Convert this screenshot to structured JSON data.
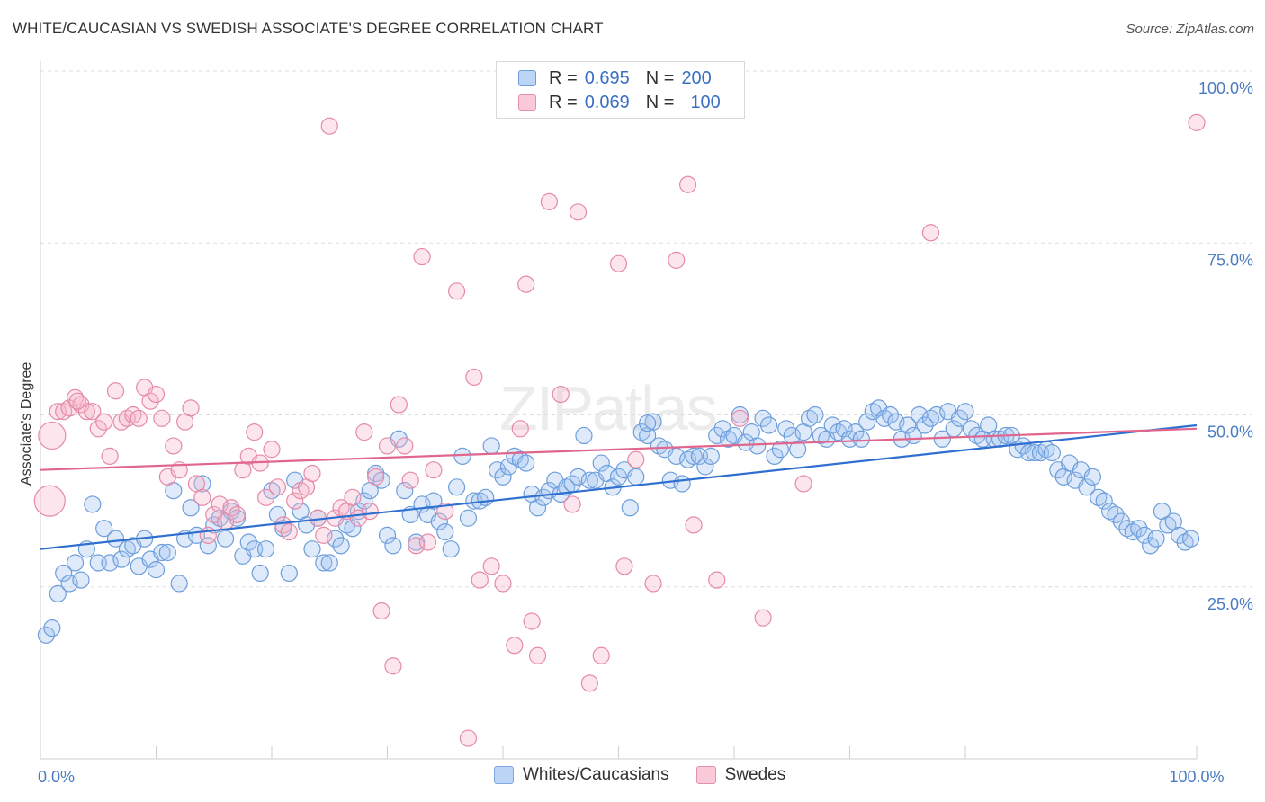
{
  "title": "WHITE/CAUCASIAN VS SWEDISH ASSOCIATE'S DEGREE CORRELATION CHART",
  "source": "Source: ZipAtlas.com",
  "watermark": {
    "main": "ZIP",
    "sub": "atlas"
  },
  "legend": {
    "rows": [
      {
        "r_label": "R =",
        "r_value": "0.695",
        "n_label": "N =",
        "n_value": "200",
        "color": "#a9c8f2",
        "border": "#6d9edb"
      },
      {
        "r_label": "R =",
        "r_value": "0.069",
        "n_label": "N =",
        "n_value": "100",
        "color": "#f7bfd0",
        "border": "#e58aa8"
      }
    ]
  },
  "bottom_legend": [
    {
      "label": "Whites/Caucasians",
      "color": "#bcd4f5",
      "border": "#7fa8e0"
    },
    {
      "label": "Swedes",
      "color": "#f9c9d8",
      "border": "#e591ad"
    }
  ],
  "chart_data": {
    "type": "scatter",
    "title": "WHITE/CAUCASIAN VS SWEDISH ASSOCIATE'S DEGREE CORRELATION CHART",
    "xlabel": "",
    "ylabel": "Associate's Degree",
    "xlim": [
      0,
      100
    ],
    "ylim": [
      0,
      105
    ],
    "x_tick_labels": [
      "0.0%",
      "100.0%"
    ],
    "y_tick_labels": [
      "25.0%",
      "50.0%",
      "75.0%",
      "100.0%"
    ],
    "y_ticks": [
      25,
      50,
      75,
      100
    ],
    "grid": "horizontal dashed",
    "legend_position": "top-center",
    "series": [
      {
        "name": "Whites/Caucasians",
        "color": "#6d9edb",
        "fill": "rgba(160,195,240,0.35)",
        "trend": {
          "x": [
            0,
            100
          ],
          "y": [
            30.5,
            48.5
          ],
          "color": "#2f6fd0"
        },
        "points": [
          [
            0.5,
            18.0
          ],
          [
            1.0,
            19.0
          ],
          [
            1.5,
            24.0
          ],
          [
            2.0,
            27.0
          ],
          [
            2.5,
            25.5
          ],
          [
            3.0,
            28.5
          ],
          [
            3.5,
            26.0
          ],
          [
            4.0,
            30.5
          ],
          [
            4.5,
            37.0
          ],
          [
            5.0,
            28.5
          ],
          [
            5.5,
            33.5
          ],
          [
            6.0,
            28.5
          ],
          [
            6.5,
            32.0
          ],
          [
            7.0,
            29.0
          ],
          [
            7.5,
            30.5
          ],
          [
            8.0,
            31.0
          ],
          [
            8.5,
            28.0
          ],
          [
            9.0,
            32.0
          ],
          [
            9.5,
            29.0
          ],
          [
            10.0,
            27.5
          ],
          [
            10.5,
            30.0
          ],
          [
            11.0,
            30.0
          ],
          [
            11.5,
            39.0
          ],
          [
            12.0,
            25.5
          ],
          [
            12.5,
            32.0
          ],
          [
            13.0,
            36.5
          ],
          [
            13.5,
            32.5
          ],
          [
            14.0,
            40.0
          ],
          [
            14.5,
            31.0
          ],
          [
            15.0,
            34.0
          ],
          [
            15.5,
            35.0
          ],
          [
            16.0,
            32.0
          ],
          [
            16.5,
            36.0
          ],
          [
            17.0,
            35.0
          ],
          [
            17.5,
            29.5
          ],
          [
            18.0,
            31.5
          ],
          [
            18.5,
            30.5
          ],
          [
            19.0,
            27.0
          ],
          [
            19.5,
            30.5
          ],
          [
            20.0,
            39.0
          ],
          [
            20.5,
            35.5
          ],
          [
            21.0,
            33.5
          ],
          [
            21.5,
            27.0
          ],
          [
            22.0,
            40.5
          ],
          [
            22.5,
            36.0
          ],
          [
            23.0,
            34.0
          ],
          [
            23.5,
            30.5
          ],
          [
            24.0,
            35.0
          ],
          [
            24.5,
            28.5
          ],
          [
            25.0,
            28.5
          ],
          [
            25.5,
            32.0
          ],
          [
            26.0,
            31.0
          ],
          [
            26.5,
            34.0
          ],
          [
            27.0,
            33.5
          ],
          [
            27.5,
            36.0
          ],
          [
            28.0,
            37.5
          ],
          [
            28.5,
            39.0
          ],
          [
            29.0,
            41.5
          ],
          [
            29.5,
            40.5
          ],
          [
            30.0,
            32.5
          ],
          [
            30.5,
            31.0
          ],
          [
            31.0,
            46.5
          ],
          [
            31.5,
            39.0
          ],
          [
            32.0,
            35.5
          ],
          [
            32.5,
            31.5
          ],
          [
            33.0,
            37.0
          ],
          [
            33.5,
            35.5
          ],
          [
            34.0,
            37.5
          ],
          [
            34.5,
            34.5
          ],
          [
            35.0,
            33.0
          ],
          [
            35.5,
            30.5
          ],
          [
            36.0,
            39.5
          ],
          [
            36.5,
            44.0
          ],
          [
            37.0,
            35.0
          ],
          [
            37.5,
            37.5
          ],
          [
            38.0,
            37.5
          ],
          [
            38.5,
            38.0
          ],
          [
            39.0,
            45.5
          ],
          [
            39.5,
            42.0
          ],
          [
            40.0,
            41.0
          ],
          [
            40.5,
            42.5
          ],
          [
            41.0,
            44.0
          ],
          [
            41.5,
            43.5
          ],
          [
            42.0,
            43.0
          ],
          [
            42.5,
            38.5
          ],
          [
            43.0,
            36.5
          ],
          [
            43.5,
            38.0
          ],
          [
            44.0,
            39.0
          ],
          [
            44.5,
            40.5
          ],
          [
            45.0,
            38.5
          ],
          [
            45.5,
            39.5
          ],
          [
            46.0,
            40.0
          ],
          [
            46.5,
            41.0
          ],
          [
            47.0,
            47.0
          ],
          [
            47.5,
            40.5
          ],
          [
            48.0,
            40.5
          ],
          [
            48.5,
            43.0
          ],
          [
            49.0,
            41.5
          ],
          [
            49.5,
            39.5
          ],
          [
            50.0,
            41.0
          ],
          [
            50.5,
            42.0
          ],
          [
            51.0,
            36.5
          ],
          [
            51.5,
            41.0
          ],
          [
            52.0,
            47.5
          ],
          [
            52.5,
            47.0
          ],
          [
            53.0,
            49.0
          ],
          [
            53.5,
            45.5
          ],
          [
            54.0,
            45.0
          ],
          [
            54.5,
            40.5
          ],
          [
            55.0,
            44.0
          ],
          [
            55.5,
            40.0
          ],
          [
            56.0,
            43.5
          ],
          [
            56.5,
            44.0
          ],
          [
            57.0,
            44.0
          ],
          [
            57.5,
            42.5
          ],
          [
            58.0,
            44.0
          ],
          [
            58.5,
            47.0
          ],
          [
            59.0,
            48.0
          ],
          [
            59.5,
            46.5
          ],
          [
            60.0,
            47.0
          ],
          [
            60.5,
            50.0
          ],
          [
            61.0,
            46.0
          ],
          [
            61.5,
            47.5
          ],
          [
            62.0,
            45.5
          ],
          [
            62.5,
            49.5
          ],
          [
            63.0,
            48.5
          ],
          [
            63.5,
            44.0
          ],
          [
            64.0,
            45.0
          ],
          [
            64.5,
            48.0
          ],
          [
            65.0,
            47.0
          ],
          [
            65.5,
            45.0
          ],
          [
            66.0,
            47.5
          ],
          [
            66.5,
            49.5
          ],
          [
            67.0,
            50.0
          ],
          [
            67.5,
            47.0
          ],
          [
            68.0,
            46.5
          ],
          [
            68.5,
            48.5
          ],
          [
            69.0,
            47.5
          ],
          [
            69.5,
            48.0
          ],
          [
            70.0,
            46.5
          ],
          [
            70.5,
            47.5
          ],
          [
            71.0,
            46.5
          ],
          [
            71.5,
            49.0
          ],
          [
            72.0,
            50.5
          ],
          [
            72.5,
            51.0
          ],
          [
            73.0,
            49.5
          ],
          [
            73.5,
            50.0
          ],
          [
            74.0,
            49.0
          ],
          [
            74.5,
            46.5
          ],
          [
            75.0,
            48.5
          ],
          [
            75.5,
            47.0
          ],
          [
            76.0,
            50.0
          ],
          [
            76.5,
            48.5
          ],
          [
            77.0,
            49.5
          ],
          [
            77.5,
            50.0
          ],
          [
            78.0,
            46.5
          ],
          [
            78.5,
            50.5
          ],
          [
            79.0,
            48.0
          ],
          [
            79.5,
            49.5
          ],
          [
            80.0,
            50.5
          ],
          [
            80.5,
            48.0
          ],
          [
            81.0,
            47.0
          ],
          [
            81.5,
            46.5
          ],
          [
            82.0,
            48.5
          ],
          [
            82.5,
            46.5
          ],
          [
            83.0,
            46.5
          ],
          [
            83.5,
            47.0
          ],
          [
            84.0,
            47.0
          ],
          [
            84.5,
            45.0
          ],
          [
            85.0,
            45.5
          ],
          [
            85.5,
            44.5
          ],
          [
            86.0,
            44.5
          ],
          [
            86.5,
            44.5
          ],
          [
            87.0,
            45.0
          ],
          [
            87.5,
            44.5
          ],
          [
            88.0,
            42.0
          ],
          [
            88.5,
            41.0
          ],
          [
            89.0,
            43.0
          ],
          [
            89.5,
            40.5
          ],
          [
            90.0,
            42.0
          ],
          [
            90.5,
            39.5
          ],
          [
            91.0,
            41.0
          ],
          [
            91.5,
            38.0
          ],
          [
            92.0,
            37.5
          ],
          [
            92.5,
            36.0
          ],
          [
            93.0,
            35.5
          ],
          [
            93.5,
            34.5
          ],
          [
            94.0,
            33.5
          ],
          [
            94.5,
            33.0
          ],
          [
            95.0,
            33.5
          ],
          [
            95.5,
            32.5
          ],
          [
            96.0,
            31.0
          ],
          [
            96.5,
            32.0
          ],
          [
            97.0,
            36.0
          ],
          [
            97.5,
            34.0
          ],
          [
            98.0,
            34.5
          ],
          [
            98.5,
            32.5
          ],
          [
            99.0,
            31.5
          ],
          [
            99.5,
            32.0
          ],
          [
            52.5,
            48.8
          ]
        ]
      },
      {
        "name": "Swedes",
        "color": "#e58aa8",
        "fill": "rgba(247,180,200,0.35)",
        "trend": {
          "x": [
            0,
            100
          ],
          "y": [
            42.0,
            48.0
          ],
          "color": "#e0668e"
        },
        "points": [
          [
            0.8,
            37.5
          ],
          [
            1.0,
            47.0
          ],
          [
            1.5,
            50.5
          ],
          [
            2.0,
            50.5
          ],
          [
            2.5,
            51.0
          ],
          [
            3.0,
            52.5
          ],
          [
            3.5,
            51.5
          ],
          [
            4.0,
            50.5
          ],
          [
            4.5,
            50.5
          ],
          [
            5.0,
            48.0
          ],
          [
            5.5,
            49.0
          ],
          [
            6.0,
            44.0
          ],
          [
            6.5,
            53.5
          ],
          [
            7.0,
            49.0
          ],
          [
            7.5,
            49.5
          ],
          [
            8.0,
            50.0
          ],
          [
            8.5,
            49.5
          ],
          [
            9.0,
            54.0
          ],
          [
            9.5,
            52.0
          ],
          [
            10.0,
            53.0
          ],
          [
            10.5,
            49.5
          ],
          [
            11.0,
            41.0
          ],
          [
            11.5,
            45.5
          ],
          [
            12.0,
            42.0
          ],
          [
            12.5,
            49.0
          ],
          [
            13.0,
            51.0
          ],
          [
            13.5,
            40.0
          ],
          [
            14.0,
            38.0
          ],
          [
            14.5,
            32.5
          ],
          [
            15.0,
            35.5
          ],
          [
            15.5,
            37.0
          ],
          [
            16.0,
            34.5
          ],
          [
            16.5,
            36.5
          ],
          [
            17.0,
            35.5
          ],
          [
            17.5,
            42.0
          ],
          [
            18.0,
            44.0
          ],
          [
            18.5,
            47.5
          ],
          [
            19.0,
            43.0
          ],
          [
            19.5,
            38.0
          ],
          [
            20.0,
            45.0
          ],
          [
            20.5,
            39.5
          ],
          [
            21.0,
            34.0
          ],
          [
            21.5,
            33.0
          ],
          [
            22.0,
            37.5
          ],
          [
            22.5,
            39.0
          ],
          [
            23.0,
            39.5
          ],
          [
            23.5,
            41.5
          ],
          [
            24.0,
            35.0
          ],
          [
            24.5,
            32.5
          ],
          [
            25.0,
            92.0
          ],
          [
            25.5,
            35.0
          ],
          [
            26.0,
            36.5
          ],
          [
            26.5,
            36.0
          ],
          [
            27.0,
            38.0
          ],
          [
            27.5,
            35.0
          ],
          [
            28.0,
            47.5
          ],
          [
            28.5,
            36.0
          ],
          [
            29.0,
            41.0
          ],
          [
            29.5,
            21.5
          ],
          [
            30.0,
            45.5
          ],
          [
            30.5,
            13.5
          ],
          [
            31.0,
            51.5
          ],
          [
            31.5,
            45.5
          ],
          [
            32.0,
            40.5
          ],
          [
            32.5,
            31.0
          ],
          [
            33.0,
            73.0
          ],
          [
            33.5,
            31.5
          ],
          [
            34.0,
            42.0
          ],
          [
            35.0,
            36.0
          ],
          [
            36.0,
            68.0
          ],
          [
            37.0,
            3.0
          ],
          [
            37.5,
            55.5
          ],
          [
            38.0,
            26.0
          ],
          [
            39.0,
            28.0
          ],
          [
            40.0,
            25.5
          ],
          [
            41.0,
            16.5
          ],
          [
            41.5,
            48.0
          ],
          [
            42.0,
            69.0
          ],
          [
            42.5,
            20.0
          ],
          [
            43.0,
            15.0
          ],
          [
            44.0,
            81.0
          ],
          [
            45.0,
            53.0
          ],
          [
            46.5,
            79.5
          ],
          [
            47.5,
            11.0
          ],
          [
            48.5,
            15.0
          ],
          [
            50.0,
            72.0
          ],
          [
            50.5,
            28.0
          ],
          [
            51.5,
            43.5
          ],
          [
            53.0,
            25.5
          ],
          [
            55.0,
            72.5
          ],
          [
            56.0,
            83.5
          ],
          [
            56.5,
            34.0
          ],
          [
            58.5,
            26.0
          ],
          [
            60.5,
            49.5
          ],
          [
            62.5,
            20.5
          ],
          [
            66.0,
            40.0
          ],
          [
            77.0,
            76.5
          ],
          [
            100.0,
            92.5
          ],
          [
            3.2,
            52.0
          ],
          [
            46.0,
            37.0
          ]
        ]
      }
    ]
  }
}
